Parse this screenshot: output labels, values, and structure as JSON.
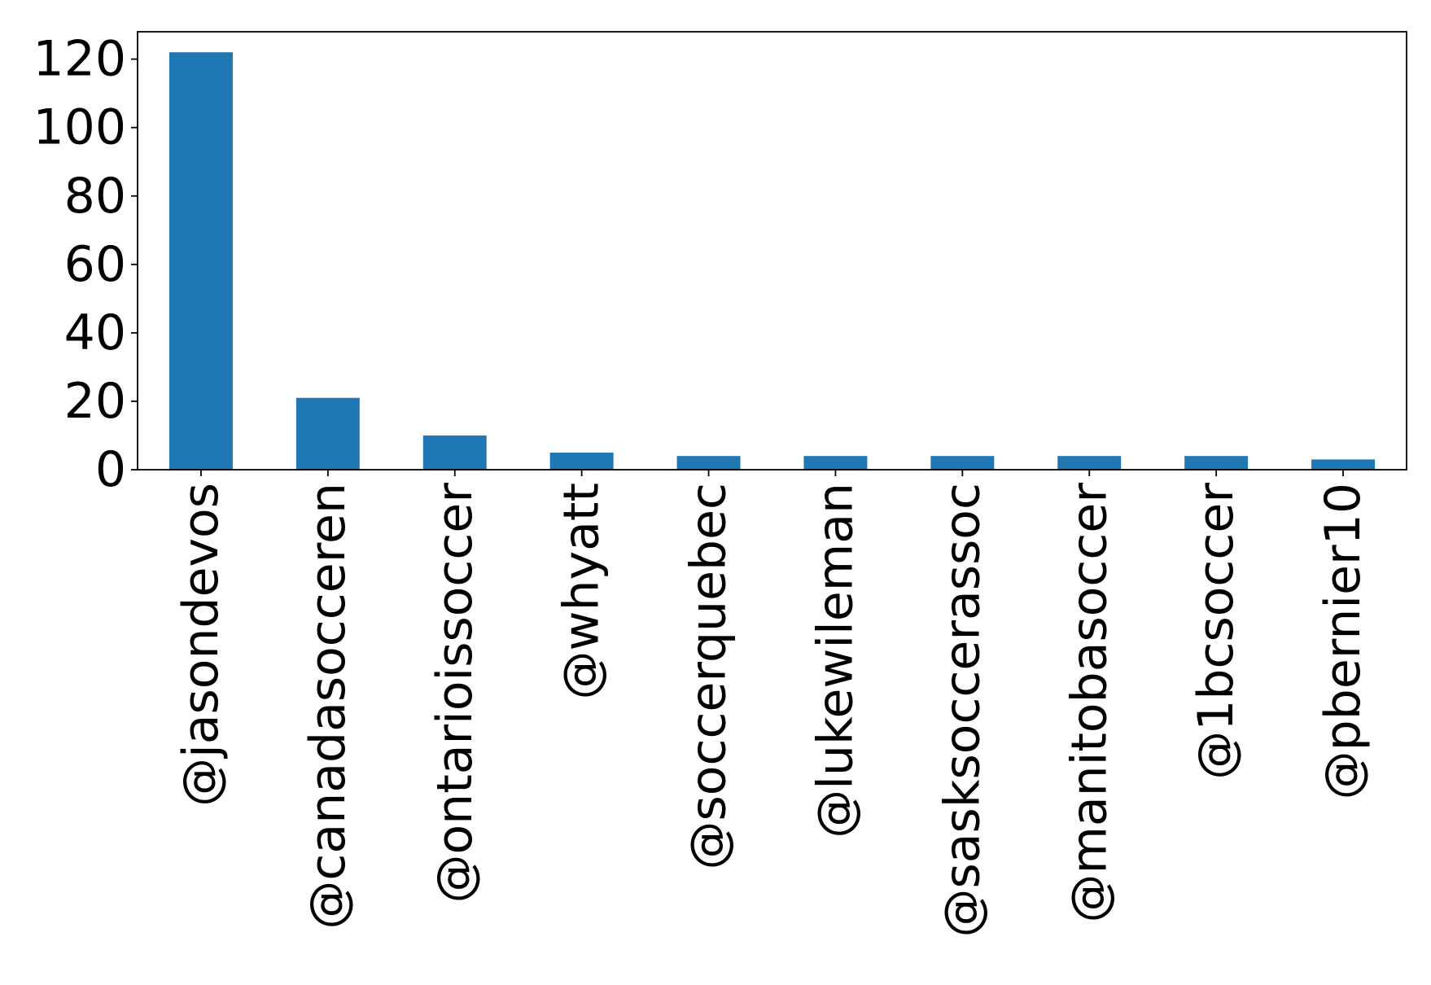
{
  "chart_data": {
    "type": "bar",
    "categories": [
      "@jasondevos",
      "@canadasocceren",
      "@ontarioissoccer",
      "@whyatt",
      "@soccerquebec",
      "@lukewileman",
      "@sasksoccerassoc",
      "@manitobasoccer",
      "@1bcsoccer",
      "@pbernier10"
    ],
    "values": [
      122,
      21,
      10,
      5,
      4,
      4,
      4,
      4,
      4,
      3
    ],
    "title": "",
    "xlabel": "",
    "ylabel": "",
    "ylim": [
      0,
      128
    ],
    "yticks": [
      0,
      20,
      40,
      60,
      80,
      100,
      120
    ],
    "grid": false,
    "legend": "none",
    "bar_color": "#1f77b4",
    "axis_color": "#000000"
  }
}
